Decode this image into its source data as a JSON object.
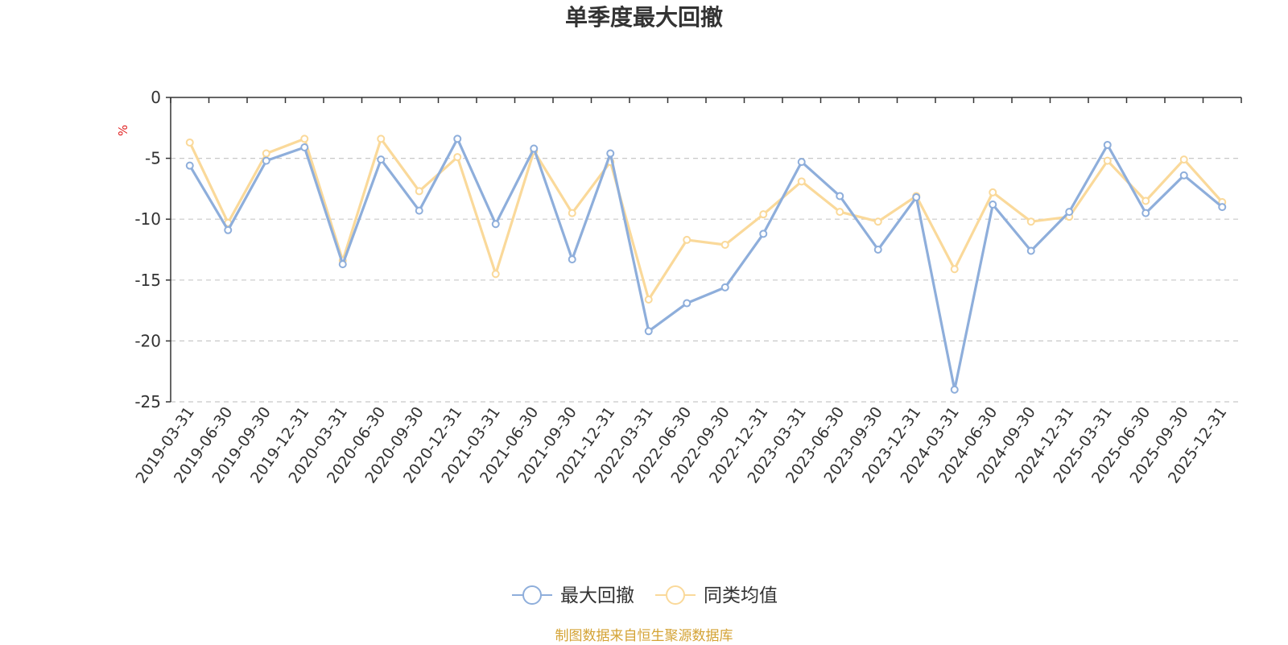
{
  "chart_data": {
    "type": "line",
    "title": "单季度最大回撤",
    "ylabel": "%",
    "ylim": [
      -25,
      0
    ],
    "yticks": [
      0,
      -5,
      -10,
      -15,
      -20,
      -25
    ],
    "grid": true,
    "legend_position": "bottom-center",
    "categories": [
      "2019-03-31",
      "2019-06-30",
      "2019-09-30",
      "2019-12-31",
      "2020-03-31",
      "2020-06-30",
      "2020-09-30",
      "2020-12-31",
      "2021-03-31",
      "2021-06-30",
      "2021-09-30",
      "2021-12-31",
      "2022-03-31",
      "2022-06-30",
      "2022-09-30",
      "2022-12-31",
      "2023-03-31",
      "2023-06-30",
      "2023-09-30",
      "2023-12-31",
      "2024-03-31",
      "2024-06-30",
      "2024-09-30",
      "2024-12-31",
      "2025-03-31",
      "2025-06-30",
      "2025-09-30",
      "2025-12-31"
    ],
    "series": [
      {
        "name": "最大回撤",
        "color": "#8eaedb",
        "values": [
          -5.6,
          -10.9,
          -5.2,
          -4.1,
          -13.7,
          -5.1,
          -9.3,
          -3.4,
          -10.4,
          -4.2,
          -13.3,
          -4.6,
          -19.2,
          -16.9,
          -15.6,
          -11.2,
          -5.3,
          -8.1,
          -12.5,
          -8.2,
          -24.0,
          -8.8,
          -12.6,
          -9.4,
          -3.9,
          -9.5,
          -6.4,
          -9.0
        ]
      },
      {
        "name": "同类均值",
        "color": "#fad99a",
        "values": [
          -3.7,
          -10.3,
          -4.6,
          -3.4,
          -13.4,
          -3.4,
          -7.7,
          -4.9,
          -14.5,
          -4.4,
          -9.5,
          -5.3,
          -16.6,
          -11.7,
          -12.1,
          -9.6,
          -6.9,
          -9.4,
          -10.2,
          -8.1,
          -14.1,
          -7.8,
          -10.2,
          -9.8,
          -5.2,
          -8.5,
          -5.1,
          -8.6
        ]
      }
    ]
  },
  "source_text": "制图数据来自恒生聚源数据库"
}
